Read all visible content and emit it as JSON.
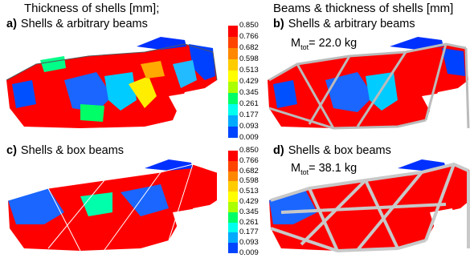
{
  "headers": {
    "left": "Thickness of shells [mm];",
    "right": "Beams & thickness of shells [mm]"
  },
  "panels": [
    {
      "letter": "a)",
      "title": "Shells & arbitrary beams",
      "mass_prefix": "",
      "mass_sub": "",
      "mass_value": "",
      "beams": "arbitrary",
      "beams_shown": false
    },
    {
      "letter": "b)",
      "title": "Shells & arbitrary beams",
      "mass_prefix": "M",
      "mass_sub": "tot",
      "mass_value": "= 22.0 kg",
      "beams": "arbitrary",
      "beams_shown": true
    },
    {
      "letter": "c)",
      "title": "Shells & box beams",
      "mass_prefix": "",
      "mass_sub": "",
      "mass_value": "",
      "beams": "box",
      "beams_shown": false
    },
    {
      "letter": "d)",
      "title": "Shells & box beams",
      "mass_prefix": "M",
      "mass_sub": "tot",
      "mass_value": "= 38.1 kg",
      "beams": "box",
      "beams_shown": true
    }
  ],
  "colorbar": {
    "ticks": [
      "0.850",
      "0.766",
      "0.682",
      "0.598",
      "0.513",
      "0.429",
      "0.345",
      "0.261",
      "0.177",
      "0.093",
      "0.009"
    ],
    "colors": [
      "#ff0000",
      "#ff4400",
      "#ff8800",
      "#ffcc00",
      "#ffff00",
      "#aaff00",
      "#00ff66",
      "#00ffee",
      "#00aaff",
      "#0044ff"
    ]
  }
}
